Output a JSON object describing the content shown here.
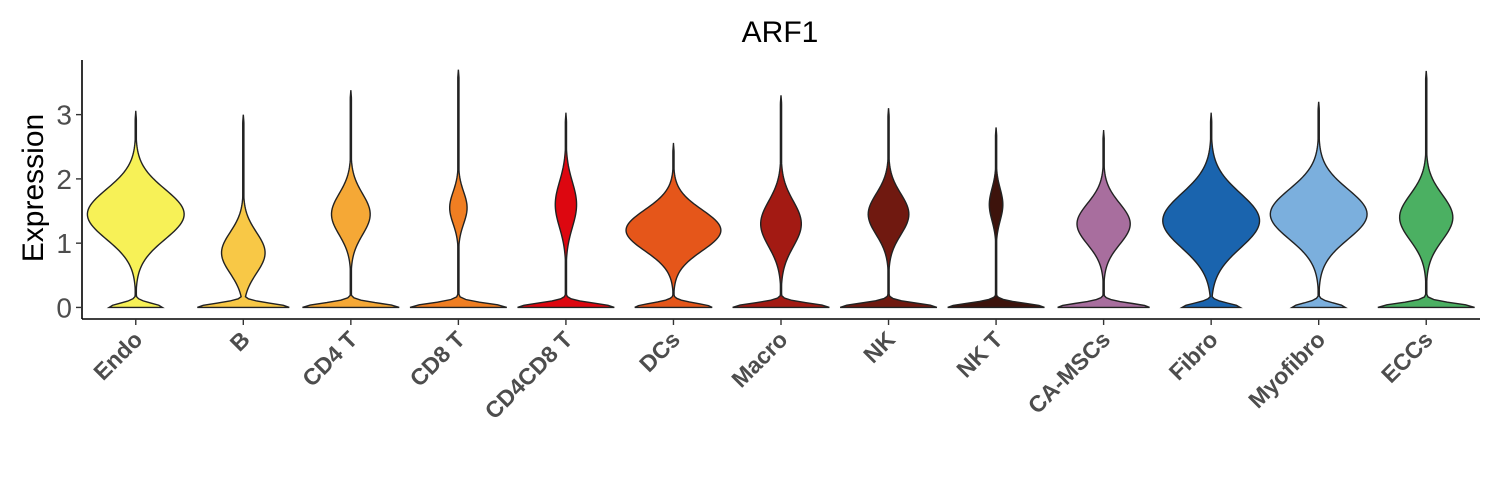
{
  "chart_data": {
    "type": "violin",
    "title": "ARF1",
    "ylabel": "Expression",
    "xlabel": "",
    "ylim": [
      -0.18,
      3.85
    ],
    "yticks": [
      0,
      1,
      2,
      3
    ],
    "grid": false,
    "legend": "none",
    "categories": [
      "Endo",
      "B",
      "CD4 T",
      "CD8 T",
      "CD4CD8 T",
      "DCs",
      "Macro",
      "NK",
      "NK T",
      "CA-MSCs",
      "Fibro",
      "Myofibro",
      "ECCs"
    ],
    "series": [
      {
        "category": "Endo",
        "color": "#F7F157",
        "max": 3.05,
        "peak": 1.45,
        "zero_width": 0.55,
        "peak_width": 1.0,
        "spread": 0.55
      },
      {
        "category": "B",
        "color": "#F8C846",
        "max": 3.0,
        "peak": 0.85,
        "zero_width": 0.95,
        "peak_width": 0.45,
        "spread": 0.45
      },
      {
        "category": "CD4 T",
        "color": "#F5A836",
        "max": 3.38,
        "peak": 1.45,
        "zero_width": 1.0,
        "peak_width": 0.4,
        "spread": 0.45
      },
      {
        "category": "CD8 T",
        "color": "#F07E22",
        "max": 3.7,
        "peak": 1.55,
        "zero_width": 1.0,
        "peak_width": 0.18,
        "spread": 0.35
      },
      {
        "category": "CD4CD8 T",
        "color": "#DD0710",
        "max": 3.02,
        "peak": 1.6,
        "zero_width": 1.0,
        "peak_width": 0.22,
        "spread": 0.5
      },
      {
        "category": "DCs",
        "color": "#E5561A",
        "max": 2.55,
        "peak": 1.2,
        "zero_width": 0.8,
        "peak_width": 0.98,
        "spread": 0.45
      },
      {
        "category": "Macro",
        "color": "#A31A13",
        "max": 3.3,
        "peak": 1.3,
        "zero_width": 1.0,
        "peak_width": 0.42,
        "spread": 0.5
      },
      {
        "category": "NK",
        "color": "#701910",
        "max": 3.1,
        "peak": 1.45,
        "zero_width": 1.0,
        "peak_width": 0.42,
        "spread": 0.45
      },
      {
        "category": "NK T",
        "color": "#3D130C",
        "max": 2.8,
        "peak": 1.6,
        "zero_width": 1.0,
        "peak_width": 0.14,
        "spread": 0.35
      },
      {
        "category": "CA-MSCs",
        "color": "#A86E9E",
        "max": 2.75,
        "peak": 1.3,
        "zero_width": 0.95,
        "peak_width": 0.55,
        "spread": 0.45
      },
      {
        "category": "Fibro",
        "color": "#1A64AE",
        "max": 3.02,
        "peak": 1.35,
        "zero_width": 0.6,
        "peak_width": 1.0,
        "spread": 0.6
      },
      {
        "category": "Myofibro",
        "color": "#7BAFDD",
        "max": 3.2,
        "peak": 1.45,
        "zero_width": 0.55,
        "peak_width": 1.0,
        "spread": 0.55
      },
      {
        "category": "ECCs",
        "color": "#4BB062",
        "max": 3.68,
        "peak": 1.4,
        "zero_width": 1.0,
        "peak_width": 0.55,
        "spread": 0.5
      }
    ]
  }
}
